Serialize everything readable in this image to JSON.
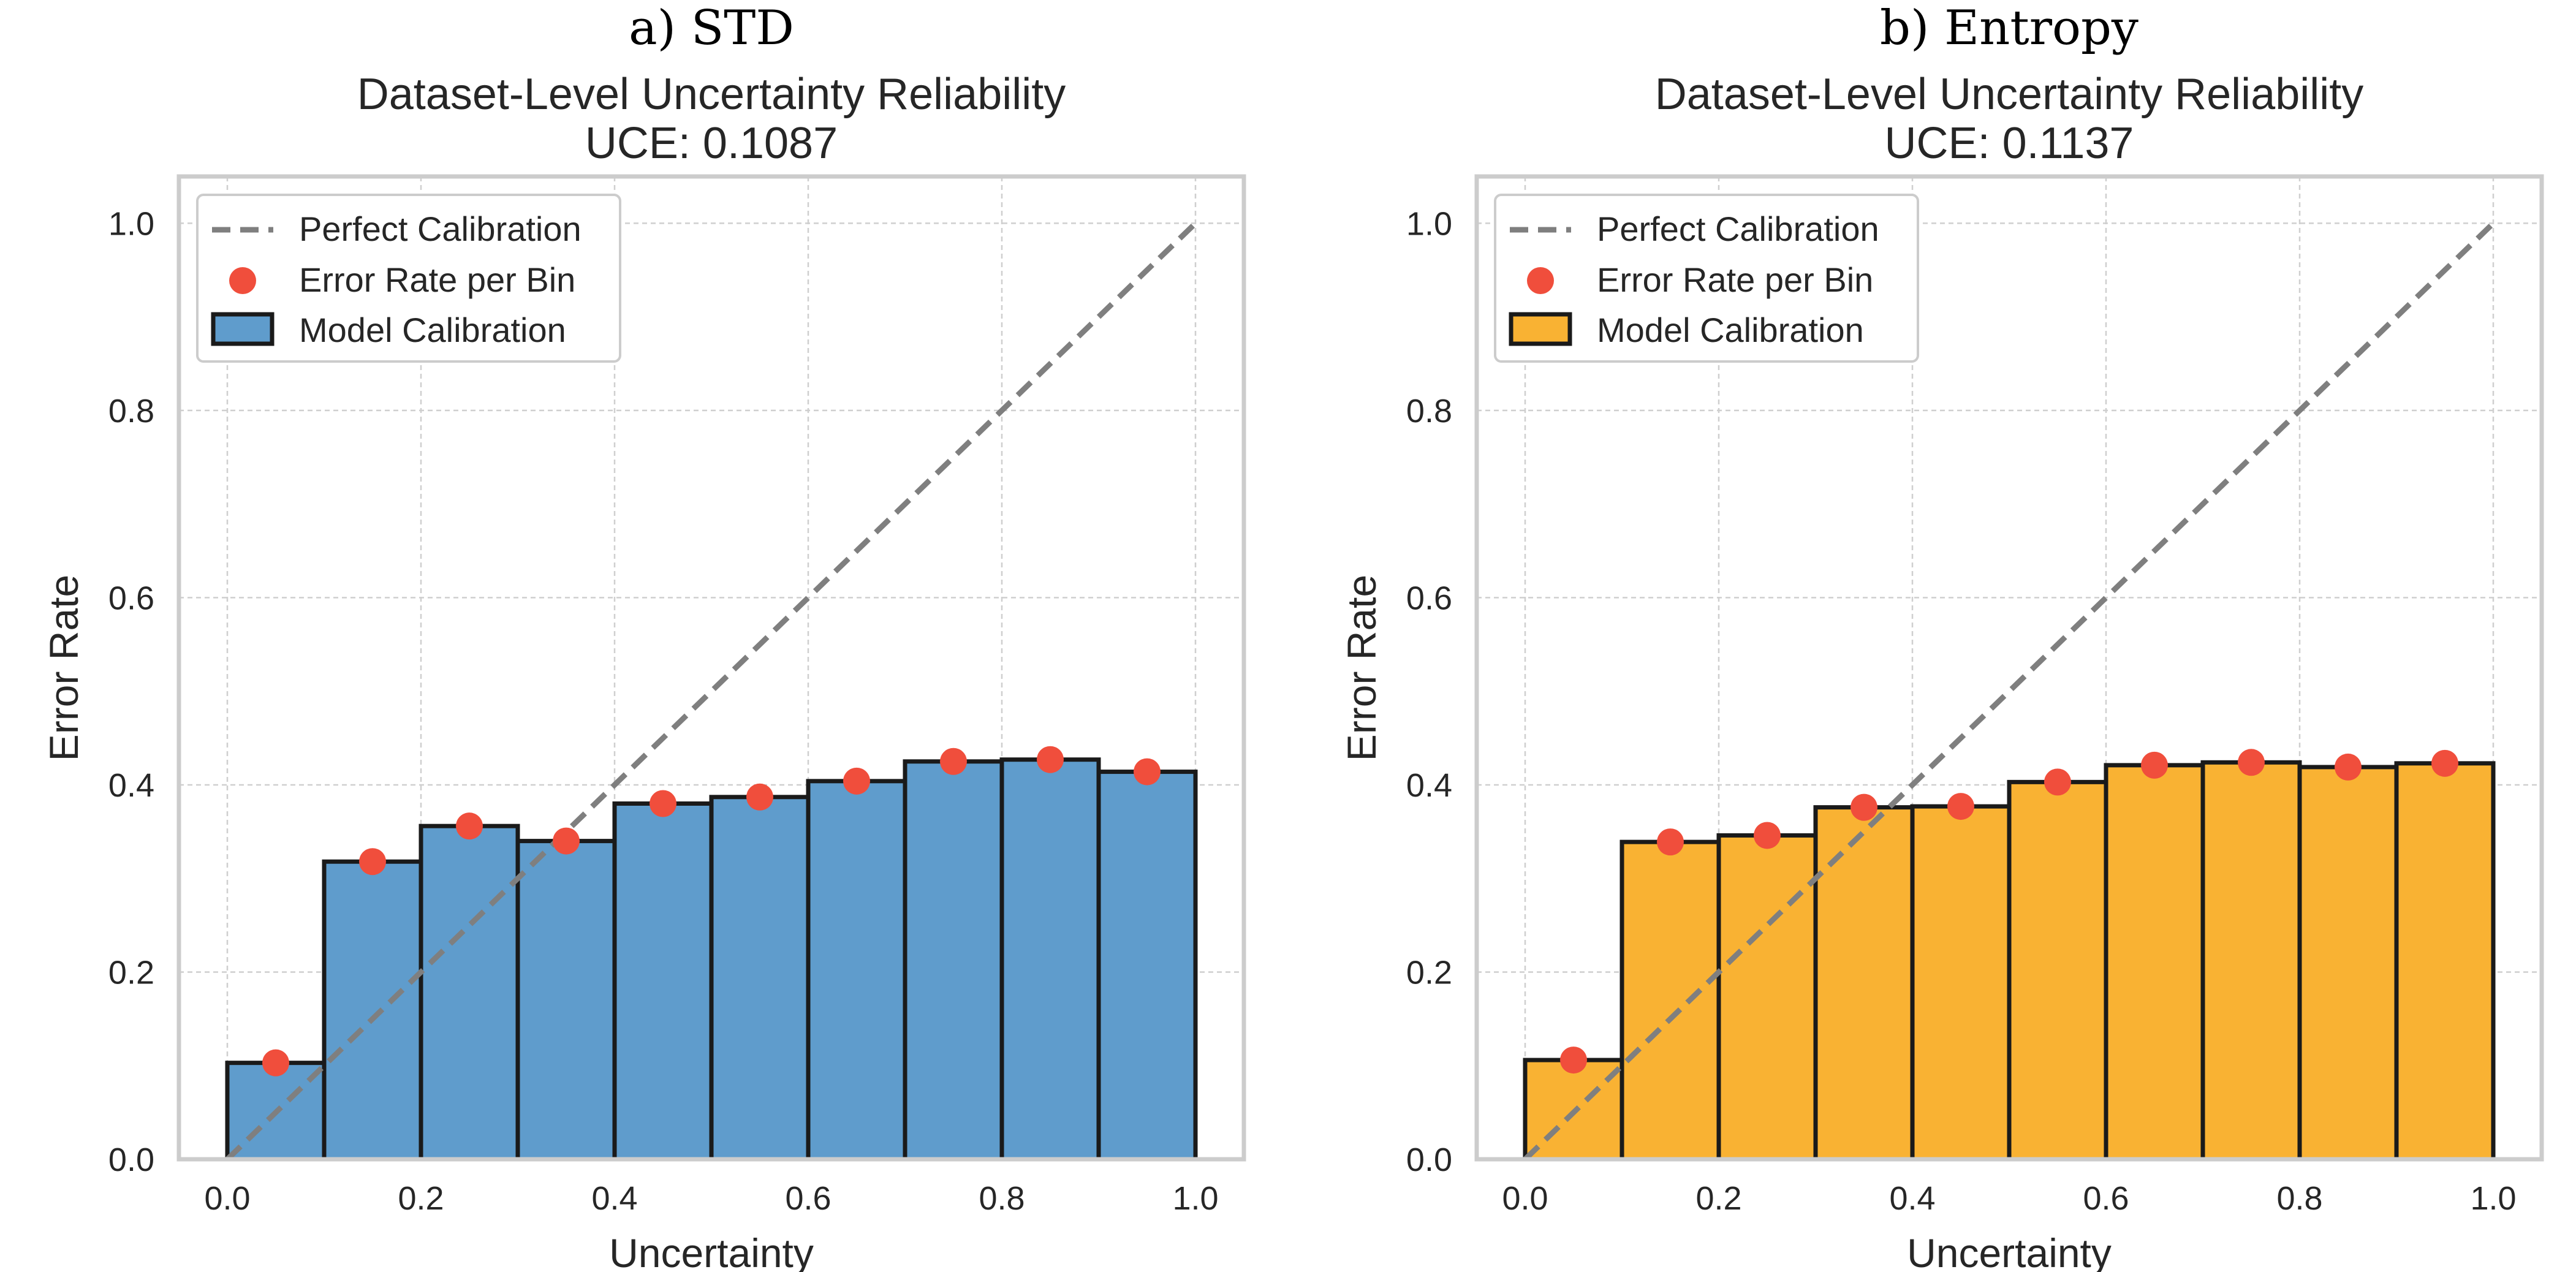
{
  "chart_data": [
    {
      "type": "bar",
      "panel_label": "a) STD",
      "title_line1": "Dataset-Level Uncertainty Reliability",
      "title_line2": "UCE: 0.1087",
      "xlabel": "Uncertainty",
      "ylabel": "Error Rate",
      "xlim": [
        -0.05,
        1.05
      ],
      "ylim": [
        0,
        1.05
      ],
      "xticks": [
        "0.0",
        "0.2",
        "0.4",
        "0.6",
        "0.8",
        "1.0"
      ],
      "yticks": [
        "0.0",
        "0.2",
        "0.4",
        "0.6",
        "0.8",
        "1.0"
      ],
      "bin_edges": [
        0.0,
        0.1,
        0.2,
        0.3,
        0.4,
        0.5,
        0.6,
        0.7,
        0.8,
        0.9,
        1.0
      ],
      "bin_centers": [
        0.05,
        0.15,
        0.25,
        0.35,
        0.45,
        0.55,
        0.65,
        0.75,
        0.85,
        0.95
      ],
      "values": [
        0.103,
        0.318,
        0.356,
        0.34,
        0.38,
        0.387,
        0.404,
        0.425,
        0.427,
        0.414
      ],
      "legend": [
        "Perfect Calibration",
        "Error Rate per Bin",
        "Model Calibration"
      ],
      "legend_position": "top-left",
      "bar_color": "#5f9ccc",
      "point_color": "#f04e3c",
      "line_color": "#7f7f7f"
    },
    {
      "type": "bar",
      "panel_label": "b) Entropy",
      "title_line1": "Dataset-Level Uncertainty Reliability",
      "title_line2": "UCE: 0.1137",
      "xlabel": "Uncertainty",
      "ylabel": "Error Rate",
      "xlim": [
        -0.05,
        1.05
      ],
      "ylim": [
        0,
        1.05
      ],
      "xticks": [
        "0.0",
        "0.2",
        "0.4",
        "0.6",
        "0.8",
        "1.0"
      ],
      "yticks": [
        "0.0",
        "0.2",
        "0.4",
        "0.6",
        "0.8",
        "1.0"
      ],
      "bin_edges": [
        0.0,
        0.1,
        0.2,
        0.3,
        0.4,
        0.5,
        0.6,
        0.7,
        0.8,
        0.9,
        1.0
      ],
      "bin_centers": [
        0.05,
        0.15,
        0.25,
        0.35,
        0.45,
        0.55,
        0.65,
        0.75,
        0.85,
        0.95
      ],
      "values": [
        0.106,
        0.339,
        0.346,
        0.376,
        0.377,
        0.403,
        0.421,
        0.424,
        0.419,
        0.423
      ],
      "legend": [
        "Perfect Calibration",
        "Error Rate per Bin",
        "Model Calibration"
      ],
      "legend_position": "top-left",
      "bar_color": "#f9b233",
      "point_color": "#f04e3c",
      "line_color": "#7f7f7f"
    }
  ]
}
